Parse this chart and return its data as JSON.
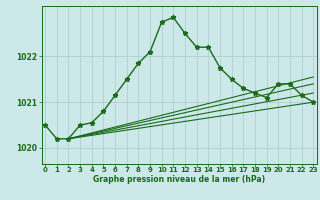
{
  "title": "Graphe pression niveau de la mer (hPa)",
  "background_color": "#cce8e8",
  "grid_color": "#aacccc",
  "line_color": "#1a6b1a",
  "xlim": [
    -0.3,
    23.3
  ],
  "ylim": [
    1019.65,
    1023.1
  ],
  "yticks": [
    1020,
    1021,
    1022
  ],
  "xticks": [
    0,
    1,
    2,
    3,
    4,
    5,
    6,
    7,
    8,
    9,
    10,
    11,
    12,
    13,
    14,
    15,
    16,
    17,
    18,
    19,
    20,
    21,
    22,
    23
  ],
  "main_x": [
    0,
    1,
    2,
    3,
    4,
    5,
    6,
    7,
    8,
    9,
    10,
    11,
    12,
    13,
    14,
    15,
    16,
    17,
    18,
    19,
    20,
    21,
    22,
    23
  ],
  "main_y": [
    1020.5,
    1020.2,
    1020.2,
    1020.5,
    1020.55,
    1020.8,
    1021.15,
    1021.5,
    1021.85,
    1022.1,
    1022.75,
    1022.85,
    1022.5,
    1022.2,
    1022.2,
    1021.75,
    1021.5,
    1021.3,
    1021.2,
    1021.1,
    1021.4,
    1021.4,
    1021.15,
    1021.0
  ],
  "fan_lines": [
    {
      "x": [
        2,
        23
      ],
      "y": [
        1020.2,
        1021.55
      ]
    },
    {
      "x": [
        2,
        23
      ],
      "y": [
        1020.2,
        1021.4
      ]
    },
    {
      "x": [
        2,
        23
      ],
      "y": [
        1020.2,
        1021.2
      ]
    },
    {
      "x": [
        2,
        23
      ],
      "y": [
        1020.2,
        1021.0
      ]
    }
  ]
}
